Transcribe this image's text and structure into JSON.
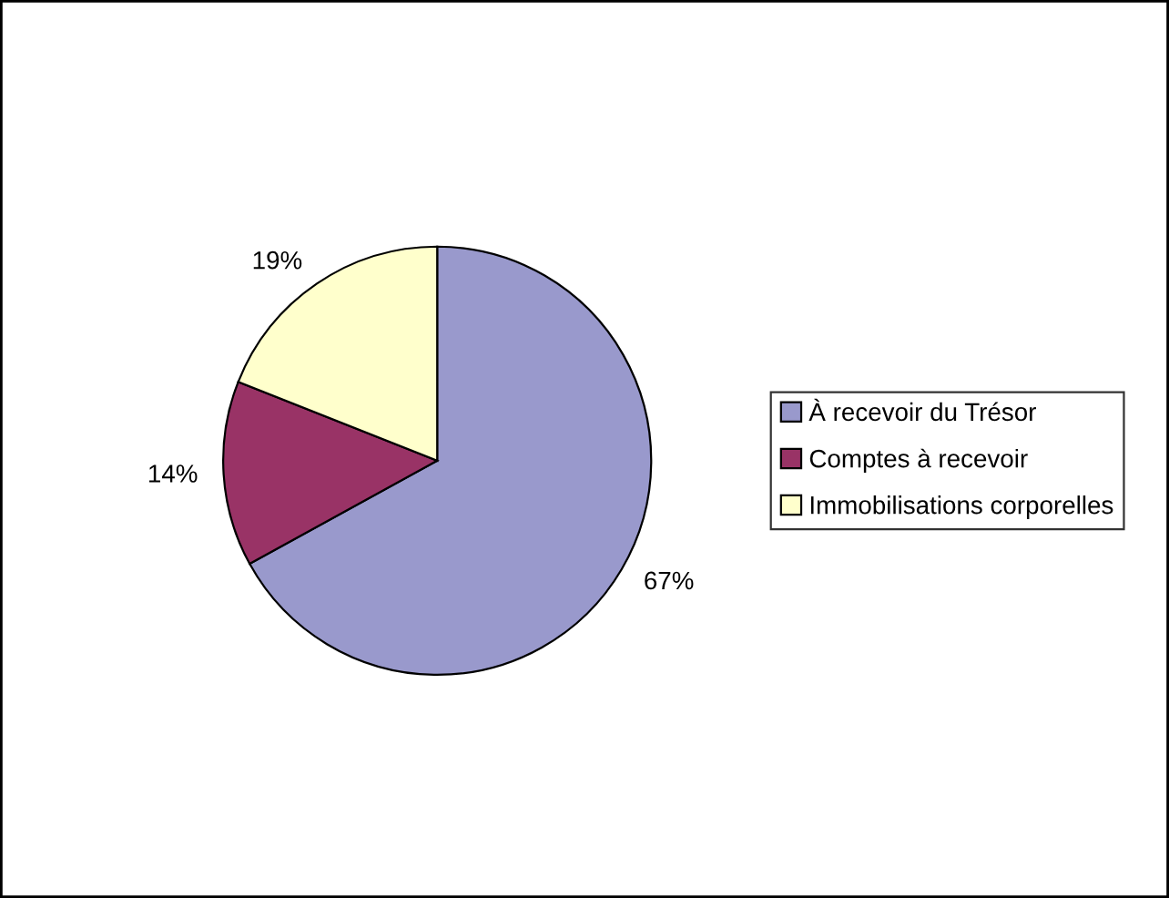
{
  "chart_data": {
    "type": "pie",
    "categories": [
      "À recevoir du Trésor",
      "Comptes à recevoir",
      "Immobilisations corporelles"
    ],
    "values": [
      67,
      14,
      19
    ],
    "colors": [
      "#9999cc",
      "#993366",
      "#ffffcc"
    ],
    "value_labels": [
      "67%",
      "14%",
      "19%"
    ],
    "legend": "right"
  }
}
